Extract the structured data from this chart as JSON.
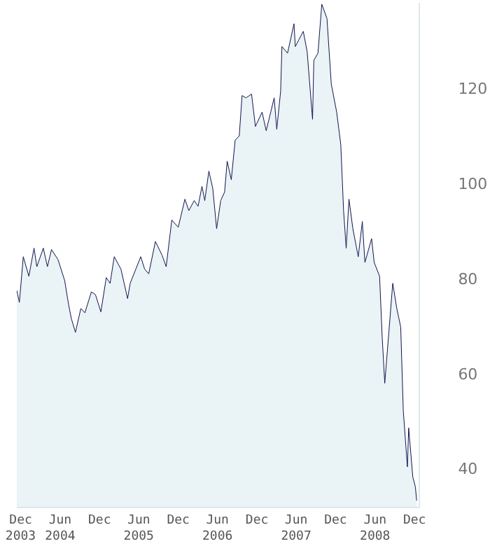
{
  "chart_data": {
    "type": "area",
    "x": [
      "2003-11-13",
      "2003-11-25",
      "2003-12-13",
      "2004-01-08",
      "2004-02-01",
      "2004-02-14",
      "2004-03-15",
      "2004-04-03",
      "2004-04-22",
      "2004-05-22",
      "2004-06-22",
      "2004-07-10",
      "2004-07-23",
      "2004-08-11",
      "2004-09-05",
      "2004-09-24",
      "2004-10-24",
      "2004-11-12",
      "2004-12-07",
      "2005-01-01",
      "2005-01-19",
      "2005-02-07",
      "2005-03-10",
      "2005-04-10",
      "2005-04-22",
      "2005-06-10",
      "2005-06-28",
      "2005-07-17",
      "2005-08-17",
      "2005-09-17",
      "2005-10-06",
      "2005-11-01",
      "2005-12-01",
      "2006-01-01",
      "2006-01-19",
      "2006-02-13",
      "2006-03-03",
      "2006-03-21",
      "2006-04-03",
      "2006-04-22",
      "2006-05-10",
      "2006-05-28",
      "2006-06-16",
      "2006-07-04",
      "2006-07-16",
      "2006-08-04",
      "2006-08-22",
      "2006-09-10",
      "2006-09-23",
      "2006-10-11",
      "2006-11-06",
      "2006-11-24",
      "2006-12-25",
      "2007-01-13",
      "2007-02-19",
      "2007-03-03",
      "2007-03-21",
      "2007-03-27",
      "2007-04-22",
      "2007-05-22",
      "2007-05-28",
      "2007-07-04",
      "2007-07-22",
      "2007-08-16",
      "2007-08-22",
      "2007-09-10",
      "2007-09-28",
      "2007-10-22",
      "2007-11-11",
      "2007-12-06",
      "2007-12-25",
      "2008-01-07",
      "2008-01-19",
      "2008-02-01",
      "2008-02-19",
      "2008-03-15",
      "2008-04-03",
      "2008-04-15",
      "2008-05-16",
      "2008-05-28",
      "2008-06-22",
      "2008-07-04",
      "2008-07-16",
      "2008-08-04",
      "2008-08-22",
      "2008-09-10",
      "2008-09-28",
      "2008-10-10",
      "2008-10-29",
      "2008-11-04",
      "2008-11-23",
      "2008-12-05",
      "2008-12-11"
    ],
    "series": [
      {
        "color": "#14144f",
        "values": [
          77.5,
          75,
          84.6,
          80.5,
          86.4,
          82.5,
          86.4,
          82.5,
          86.1,
          84,
          79.6,
          74.6,
          71.6,
          68.7,
          73.7,
          72.8,
          77.2,
          76.6,
          73,
          80.2,
          79,
          84.6,
          82,
          75.8,
          79,
          84.6,
          82,
          81,
          87.8,
          84.9,
          82.5,
          92.3,
          90.8,
          96.7,
          94.3,
          96.4,
          95.2,
          99.4,
          96.4,
          102.6,
          99,
          90.5,
          96.4,
          98.2,
          104.7,
          100.8,
          109.1,
          110,
          118.5,
          118,
          118.8,
          112,
          115,
          111.1,
          118,
          111.4,
          119.4,
          128.8,
          127.4,
          133.6,
          128.8,
          132,
          127.7,
          113.5,
          125.9,
          127.4,
          137.7,
          134.7,
          120.9,
          115,
          108.2,
          94.3,
          86.4,
          96.7,
          90.5,
          84.6,
          92,
          83.4,
          88.4,
          83.4,
          80.5,
          67.8,
          58,
          68.7,
          79,
          73.7,
          69.8,
          52.2,
          40.4,
          48.6,
          38.3,
          36.2,
          33.3
        ]
      }
    ],
    "xlim": [
      "2003-11-13",
      "2008-12-20"
    ],
    "xticks": [
      {
        "value": "2003-12-01",
        "label": "Dec\n2003"
      },
      {
        "value": "2004-06-01",
        "label": "Jun\n2004"
      },
      {
        "value": "2004-12-01",
        "label": "Dec"
      },
      {
        "value": "2005-06-01",
        "label": "Jun\n2005"
      },
      {
        "value": "2005-12-01",
        "label": "Dec"
      },
      {
        "value": "2006-06-01",
        "label": "Jun\n2006"
      },
      {
        "value": "2006-12-01",
        "label": "Dec"
      },
      {
        "value": "2007-06-01",
        "label": "Jun\n2007"
      },
      {
        "value": "2007-12-01",
        "label": "Dec"
      },
      {
        "value": "2008-06-01",
        "label": "Jun\n2008"
      },
      {
        "value": "2008-12-01",
        "label": "Dec"
      }
    ],
    "ylim": [
      32,
      138
    ],
    "yticks": [
      40,
      60,
      80,
      100,
      120
    ],
    "legend": false,
    "marker": "none",
    "line_style": "solid"
  }
}
